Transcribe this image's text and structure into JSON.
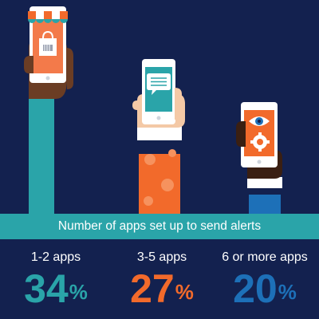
{
  "chart_data": {
    "type": "bar",
    "title": "Number of apps set up to send alerts",
    "categories": [
      "1-2 apps",
      "3-5 apps",
      "6 or more apps"
    ],
    "values": [
      34,
      27,
      20
    ],
    "unit": "%",
    "colors": [
      "#2aa4a9",
      "#f26a2b",
      "#1d70b8"
    ]
  },
  "icons": [
    "shopping-bag-icon",
    "chat-bubble-icon",
    "eye-icon",
    "gear-icon"
  ]
}
